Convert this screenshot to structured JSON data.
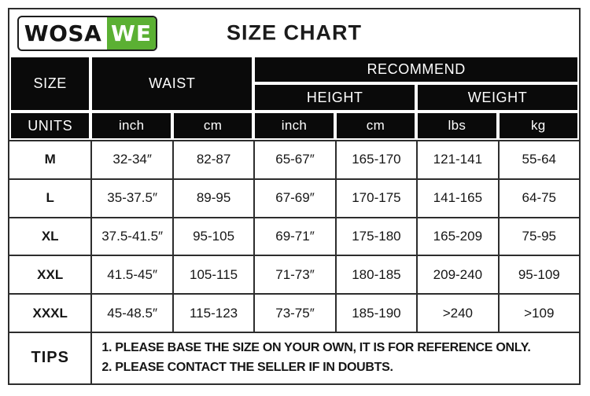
{
  "logo": {
    "text_black": "WOSA",
    "text_green": "WE"
  },
  "title": "SIZE CHART",
  "chart_data": {
    "type": "table",
    "title": "SIZE CHART",
    "header": {
      "size": "SIZE",
      "waist": "WAIST",
      "recommend": "RECOMMEND",
      "height": "HEIGHT",
      "weight": "WEIGHT",
      "units_label": "UNITS",
      "units": [
        "inch",
        "cm",
        "inch",
        "cm",
        "lbs",
        "kg"
      ]
    },
    "rows": [
      {
        "size": "M",
        "values": [
          "32-34″",
          "82-87",
          "65-67″",
          "165-170",
          "121-141",
          "55-64"
        ]
      },
      {
        "size": "L",
        "values": [
          "35-37.5″",
          "89-95",
          "67-69″",
          "170-175",
          "141-165",
          "64-75"
        ]
      },
      {
        "size": "XL",
        "values": [
          "37.5-41.5″",
          "95-105",
          "69-71″",
          "175-180",
          "165-209",
          "75-95"
        ]
      },
      {
        "size": "XXL",
        "values": [
          "41.5-45″",
          "105-115",
          "71-73″",
          "180-185",
          "209-240",
          "95-109"
        ]
      },
      {
        "size": "XXXL",
        "values": [
          "45-48.5″",
          "115-123",
          "73-75″",
          "185-190",
          ">240",
          ">109"
        ]
      }
    ],
    "tips": {
      "label": "TIPS",
      "lines": [
        "1. PLEASE BASE THE SIZE ON YOUR OWN, IT IS FOR REFERENCE ONLY.",
        "2. PLEASE CONTACT THE SELLER IF IN DOUBTS."
      ]
    }
  },
  "colors": {
    "brand_green": "#5BB033",
    "header_bg": "#0a0a0a",
    "border": "#2d2d2d"
  }
}
